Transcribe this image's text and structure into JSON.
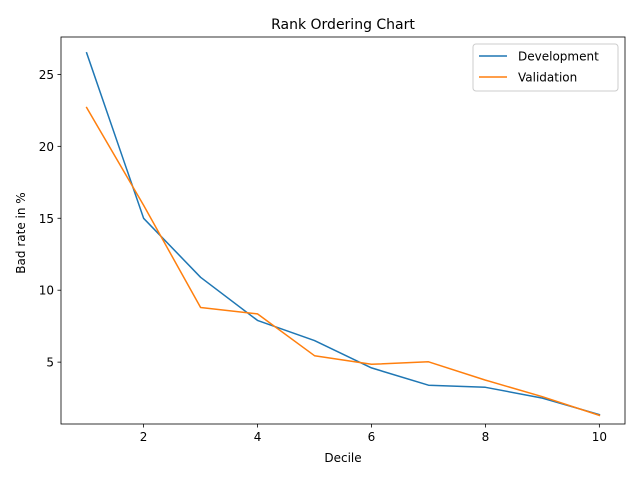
{
  "chart_data": {
    "type": "line",
    "title": "Rank Ordering Chart",
    "xlabel": "Decile",
    "ylabel": "Bad rate in %",
    "xlim": [
      0.55,
      10.45
    ],
    "ylim": [
      0.7,
      27.6
    ],
    "xticks": [
      2,
      4,
      6,
      8,
      10
    ],
    "yticks": [
      5,
      10,
      15,
      20,
      25
    ],
    "grid": false,
    "legend_position": "top-right",
    "x": [
      1,
      2,
      3,
      4,
      5,
      6,
      7,
      8,
      9,
      10
    ],
    "series": [
      {
        "name": "Development",
        "color": "#1f77b4",
        "values": [
          26.5,
          15.0,
          10.9,
          7.9,
          6.5,
          4.6,
          3.4,
          3.25,
          2.5,
          1.35
        ]
      },
      {
        "name": "Validation",
        "color": "#ff7f0e",
        "values": [
          22.7,
          15.9,
          8.8,
          8.35,
          5.45,
          4.85,
          5.02,
          3.75,
          2.6,
          1.3
        ]
      }
    ]
  }
}
